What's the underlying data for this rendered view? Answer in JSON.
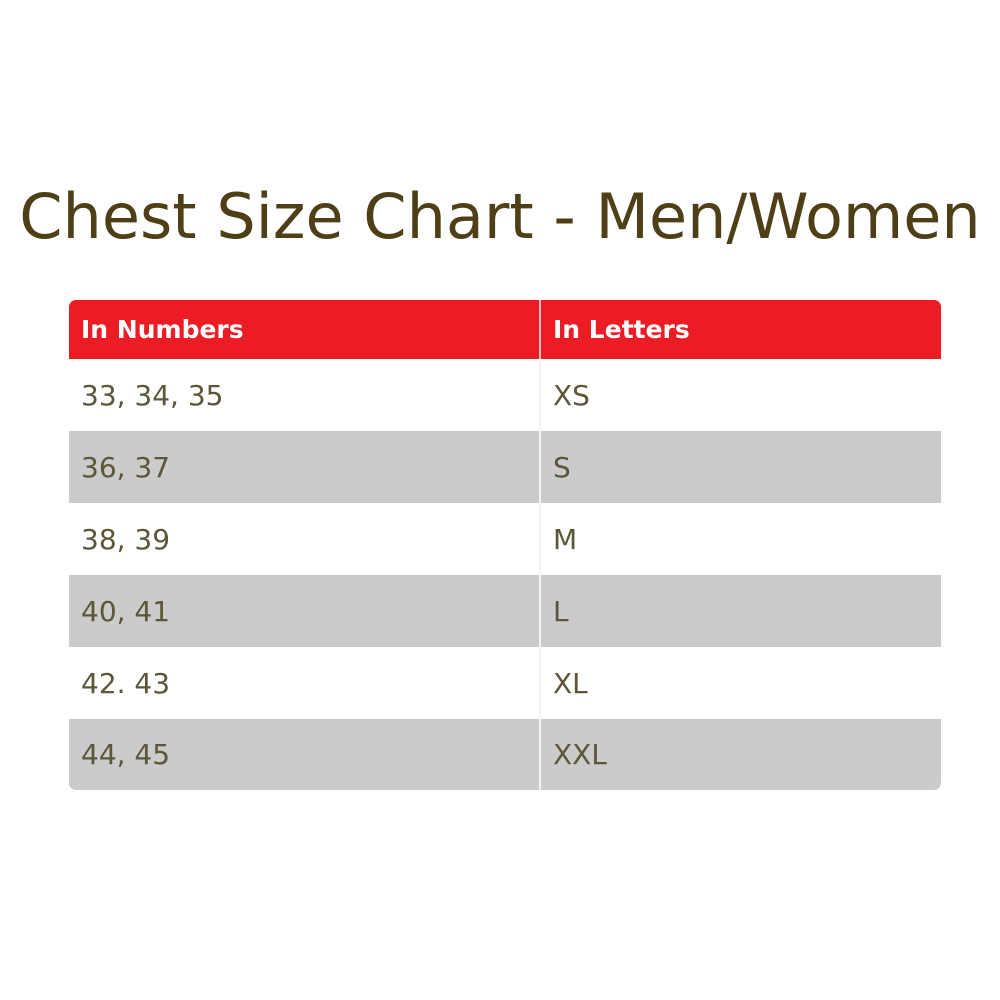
{
  "title": "Chest Size Chart - Men/Women",
  "colors": {
    "header_bg": "#ec1c24",
    "alt_row_bg": "#cbcbcb",
    "text": "#5d5638",
    "title": "#4f3f17"
  },
  "table": {
    "headers": [
      "In Numbers",
      "In Letters"
    ],
    "rows": [
      [
        "33, 34, 35",
        "XS"
      ],
      [
        "36, 37",
        "S"
      ],
      [
        "38, 39",
        "M"
      ],
      [
        "40, 41",
        "L"
      ],
      [
        "42. 43",
        "XL"
      ],
      [
        "44, 45",
        "XXL"
      ]
    ]
  }
}
